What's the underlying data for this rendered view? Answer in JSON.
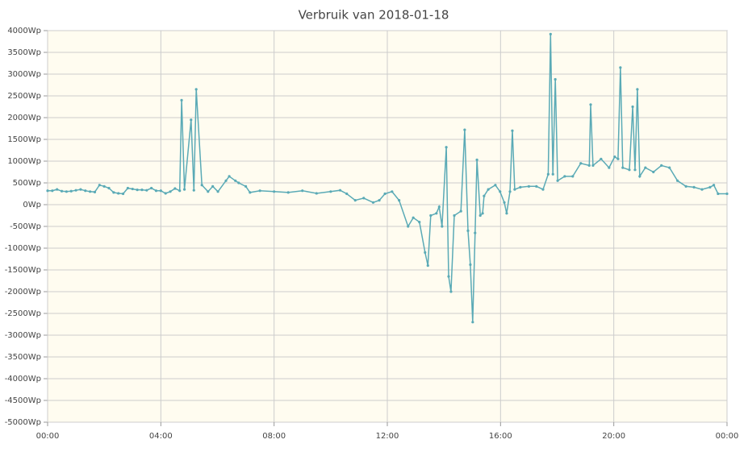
{
  "chart_data": {
    "type": "line",
    "title": "Verbruik van 2018-01-18",
    "xlim": [
      0,
      1440
    ],
    "xticks": [
      {
        "value": 0,
        "label": "00:00"
      },
      {
        "value": 240,
        "label": "04:00"
      },
      {
        "value": 480,
        "label": "08:00"
      },
      {
        "value": 720,
        "label": "12:00"
      },
      {
        "value": 960,
        "label": "16:00"
      },
      {
        "value": 1200,
        "label": "20:00"
      },
      {
        "value": 1440,
        "label": "00:00"
      }
    ],
    "ylim": [
      -5000,
      4000
    ],
    "yticks": [
      {
        "value": -5000,
        "label": "-5000Wp"
      },
      {
        "value": -4500,
        "label": "-4500Wp"
      },
      {
        "value": -4000,
        "label": "-4000Wp"
      },
      {
        "value": -3500,
        "label": "-3500Wp"
      },
      {
        "value": -3000,
        "label": "-3000Wp"
      },
      {
        "value": -2500,
        "label": "-2500Wp"
      },
      {
        "value": -2000,
        "label": "-2000Wp"
      },
      {
        "value": -1500,
        "label": "-1500Wp"
      },
      {
        "value": -1000,
        "label": "-1000Wp"
      },
      {
        "value": -500,
        "label": "-500Wp"
      },
      {
        "value": 0,
        "label": "0Wp"
      },
      {
        "value": 500,
        "label": "500Wp"
      },
      {
        "value": 1000,
        "label": "1000Wp"
      },
      {
        "value": 1500,
        "label": "1500Wp"
      },
      {
        "value": 2000,
        "label": "2000Wp"
      },
      {
        "value": 2500,
        "label": "2500Wp"
      },
      {
        "value": 3000,
        "label": "3000Wp"
      },
      {
        "value": 3500,
        "label": "3500Wp"
      },
      {
        "value": 4000,
        "label": "4000Wp"
      }
    ],
    "grid": true,
    "series": [
      {
        "color": "#5aaab6",
        "x": [
          0,
          10,
          20,
          30,
          40,
          50,
          60,
          70,
          80,
          90,
          100,
          110,
          120,
          130,
          140,
          150,
          160,
          170,
          180,
          190,
          200,
          210,
          220,
          230,
          240,
          250,
          260,
          270,
          280,
          284,
          290,
          304,
          310,
          315,
          327,
          340,
          350,
          361,
          378,
          385,
          398,
          405,
          420,
          429,
          450,
          480,
          510,
          540,
          570,
          600,
          620,
          634,
          652,
          670,
          690,
          703,
          715,
          730,
          745,
          764,
          775,
          788,
          800,
          806,
          812,
          824,
          830,
          836,
          845,
          850,
          855,
          862,
          876,
          884,
          891,
          896,
          901,
          906,
          910,
          917,
          922,
          925,
          934,
          949,
          959,
          968,
          973,
          980,
          985,
          990,
          1002,
          1020,
          1036,
          1050,
          1061,
          1066,
          1071,
          1076,
          1081,
          1096,
          1113,
          1130,
          1148,
          1151,
          1156,
          1173,
          1190,
          1202,
          1209,
          1214,
          1219,
          1233,
          1240,
          1245,
          1250,
          1255,
          1267,
          1284,
          1301,
          1318,
          1335,
          1353,
          1370,
          1387,
          1404,
          1412,
          1421,
          1440
        ],
        "values": [
          320,
          320,
          350,
          310,
          300,
          310,
          330,
          350,
          320,
          300,
          290,
          450,
          420,
          380,
          280,
          260,
          250,
          380,
          360,
          340,
          340,
          330,
          380,
          320,
          320,
          260,
          300,
          370,
          320,
          2400,
          350,
          1950,
          330,
          2650,
          450,
          300,
          420,
          300,
          550,
          650,
          550,
          500,
          420,
          280,
          320,
          300,
          280,
          320,
          260,
          300,
          330,
          250,
          100,
          150,
          50,
          100,
          250,
          300,
          100,
          -500,
          -300,
          -400,
          -1100,
          -1400,
          -250,
          -200,
          -50,
          -500,
          1320,
          -1650,
          -2000,
          -250,
          -150,
          1720,
          -600,
          -1380,
          -2700,
          -650,
          1030,
          -250,
          -200,
          200,
          350,
          450,
          300,
          50,
          -200,
          300,
          1700,
          350,
          400,
          420,
          420,
          350,
          700,
          3920,
          700,
          2880,
          550,
          650,
          650,
          950,
          900,
          2300,
          900,
          1050,
          850,
          1100,
          1050,
          3150,
          850,
          800,
          2250,
          800,
          2650,
          650,
          850,
          750,
          900,
          850,
          550,
          420,
          400,
          350,
          400,
          450,
          250,
          250
        ]
      }
    ]
  }
}
